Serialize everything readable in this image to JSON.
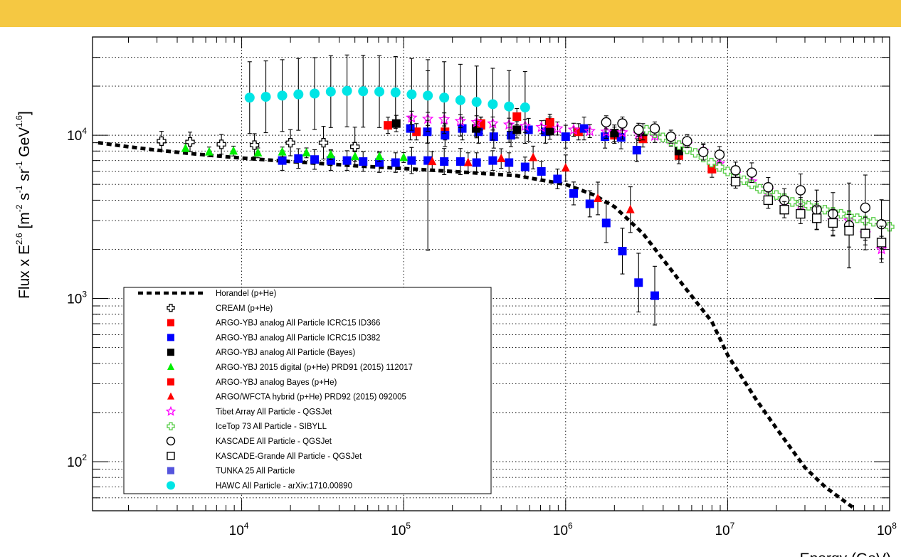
{
  "chart_data": {
    "type": "scatter",
    "xscale": "log",
    "yscale": "log",
    "xlim": [
      1200,
      100000000
    ],
    "ylim": [
      50,
      40000
    ],
    "grid": true,
    "legend_position": "bottom-left",
    "xlabel": "Energy (GeV)",
    "ylabel_parts": {
      "base": "Flux x E",
      "exp1": "2.6",
      "open": " [m",
      "exp2": "-2",
      "s": " s",
      "exp3": "-1",
      "sr": " sr",
      "exp4": "-1",
      "gev": " GeV",
      "exp5": "1.6",
      "close": "]"
    },
    "x_ticks": [
      {
        "value": 10000,
        "base": "10",
        "exp": "4"
      },
      {
        "value": 100000,
        "base": "10",
        "exp": "5"
      },
      {
        "value": 1000000,
        "base": "10",
        "exp": "6"
      },
      {
        "value": 10000000,
        "base": "10",
        "exp": "7"
      },
      {
        "value": 100000000,
        "base": "10",
        "exp": "8"
      }
    ],
    "y_ticks": [
      {
        "value": 100,
        "base": "10",
        "exp": "2"
      },
      {
        "value": 1000,
        "base": "10",
        "exp": "3"
      },
      {
        "value": 10000,
        "base": "10",
        "exp": "4"
      }
    ],
    "series": [
      {
        "name": "Horandel (p+He)",
        "marker": "line-dashed",
        "color": "#000000",
        "x": [
          1300,
          2000,
          3000,
          5000,
          10000,
          20000,
          50000,
          100000,
          200000,
          500000,
          1000000,
          1500000,
          2000000,
          3000000,
          5000000,
          8000000,
          10000000,
          15000000,
          20000000,
          30000000,
          40000000,
          60000000
        ],
        "y": [
          9000,
          8500,
          8100,
          7700,
          7250,
          6900,
          6500,
          6250,
          6000,
          5650,
          5000,
          4300,
          3650,
          2500,
          1300,
          720,
          450,
          240,
          160,
          92,
          70,
          52
        ]
      },
      {
        "name": "CREAM (p+He)",
        "marker": "cross-open",
        "color": "#000000",
        "x": [
          3200,
          4800,
          7500,
          12000,
          20000,
          32000,
          50000
        ],
        "y": [
          9200,
          9100,
          8800,
          8700,
          9000,
          9000,
          8500
        ],
        "err": [
          0.06,
          0.06,
          0.06,
          0.07,
          0.08,
          0.1,
          0.12
        ]
      },
      {
        "name": "ARGO-YBJ analog All Particle ICRC15 ID366",
        "marker": "square-filled",
        "color": "#ff0000",
        "x": [
          80000,
          120000,
          180000,
          300000,
          500000,
          800000,
          1200000,
          2000000,
          3000000,
          5000000,
          8000000
        ],
        "y": [
          11500,
          10500,
          10500,
          11500,
          13000,
          12000,
          10500,
          10000,
          9500,
          7500,
          6200
        ],
        "err": [
          0.05,
          0.05,
          0.05,
          0.05,
          0.05,
          0.05,
          0.05,
          0.05,
          0.05,
          0.05,
          0.05
        ]
      },
      {
        "name": "ARGO-YBJ analog All Particle ICRC15 ID382",
        "marker": "square-filled",
        "color": "#0000ff",
        "x": [
          17800,
          22400,
          28200,
          35500,
          44700,
          56200,
          70800,
          89100,
          112000,
          141000,
          178000,
          224000,
          282000,
          355000,
          447000,
          562000,
          708000,
          891000,
          1120000,
          1410000,
          1780000,
          2240000,
          2820000,
          3550000,
          110000,
          140000,
          180000,
          230000,
          290000,
          360000,
          460000,
          590000,
          750000,
          1000000,
          1300000,
          1750000,
          2200000,
          2750000
        ],
        "y": [
          7000,
          7200,
          7100,
          7000,
          7000,
          6900,
          6800,
          6800,
          7000,
          7000,
          6900,
          6900,
          6800,
          7000,
          6800,
          6400,
          6000,
          5400,
          4400,
          3800,
          2900,
          1950,
          1250,
          1040,
          11000,
          10500,
          10000,
          11000,
          10500,
          9800,
          10000,
          10800,
          10500,
          9800,
          11000,
          9800,
          9700,
          8100
        ],
        "err": [
          0.06,
          0.06,
          0.06,
          0.06,
          0.06,
          0.06,
          0.06,
          0.06,
          0.08,
          0.55,
          0.08,
          0.08,
          0.06,
          0.06,
          0.06,
          0.06,
          0.06,
          0.06,
          0.07,
          0.08,
          0.12,
          0.14,
          0.18,
          0.18,
          0.07,
          0.07,
          0.07,
          0.07,
          0.07,
          0.07,
          0.07,
          0.07,
          0.07,
          0.07,
          0.07,
          0.07,
          0.07,
          0.07
        ]
      },
      {
        "name": "ARGO-YBJ analog All Particle (Bayes)",
        "marker": "square-filled",
        "color": "#000000",
        "x": [
          90000,
          280000,
          500000,
          800000,
          2000000,
          3000000,
          5000000
        ],
        "y": [
          11800,
          11000,
          10800,
          10600,
          10300,
          10500,
          8000
        ],
        "err": [
          0.05,
          0.05,
          0.05,
          0.05,
          0.05,
          0.05,
          0.05
        ]
      },
      {
        "name": "ARGO-YBJ 2015 digital (p+He) PRD91 (2015) 112017",
        "marker": "triangle-filled",
        "color": "#00ee00",
        "x": [
          4500,
          6300,
          8900,
          12600,
          17800,
          25100,
          35500,
          50100,
          70800,
          100000
        ],
        "y": [
          8300,
          7900,
          8000,
          7800,
          7900,
          7800,
          7600,
          7400,
          7400,
          7300
        ],
        "err": [
          0.03,
          0.03,
          0.03,
          0.03,
          0.03,
          0.03,
          0.03,
          0.03,
          0.03,
          0.03
        ]
      },
      {
        "name": "ARGO-YBJ analog Bayes (p+He)",
        "marker": "square-filled",
        "color": "#ff0000",
        "x": [
          300000,
          800000
        ],
        "y": [
          11800,
          11800
        ],
        "err": [
          0.04,
          0.04
        ]
      },
      {
        "name": "ARGO/WFCTA hybrid (p+He) PRD92 (2015) 092005",
        "marker": "triangle-filled",
        "color": "#ff0000",
        "x": [
          150000,
          250000,
          400000,
          630000,
          1000000,
          1580000,
          2510000
        ],
        "y": [
          6900,
          6800,
          7200,
          7300,
          6300,
          4100,
          3500
        ],
        "err": [
          0.06,
          0.06,
          0.06,
          0.07,
          0.08,
          0.1,
          0.14
        ]
      },
      {
        "name": "Tibet Array All Particle - QGSJet",
        "marker": "star-open",
        "color": "#ff00ff",
        "x": [
          112000,
          141000,
          178000,
          224000,
          282000,
          355000,
          447000,
          562000,
          708000,
          891000,
          1120000,
          1410000,
          1780000,
          2240000,
          2820000,
          3550000,
          4470000,
          5620000,
          7080000,
          8910000,
          11200000,
          14100000,
          17800000,
          22400000,
          28200000,
          35500000,
          44700000,
          56200000,
          70800000,
          89100000
        ],
        "y": [
          12800,
          12600,
          12500,
          12200,
          12000,
          11800,
          11600,
          11400,
          11200,
          11000,
          10800,
          10600,
          10500,
          10400,
          10200,
          9900,
          9400,
          8800,
          8000,
          6700,
          5800,
          5200,
          4600,
          3900,
          3700,
          3500,
          3000,
          3000,
          2500,
          2000
        ],
        "err": [
          0.04,
          0.04,
          0.04,
          0.04,
          0.04,
          0.04,
          0.04,
          0.04,
          0.04,
          0.04,
          0.04,
          0.04,
          0.04,
          0.04,
          0.04,
          0.04,
          0.04,
          0.04,
          0.04,
          0.04,
          0.04,
          0.04,
          0.04,
          0.05,
          0.05,
          0.05,
          0.06,
          0.06,
          0.07,
          0.08
        ]
      },
      {
        "name": "IceTop 73 All Particle - SIBYLL",
        "marker": "cross-open",
        "color": "#55cc44",
        "x": [
          3160000,
          3550000,
          3980000,
          4470000,
          5010000,
          5620000,
          6310000,
          7080000,
          7940000,
          8910000,
          10000000,
          11200000,
          12600000,
          14100000,
          15800000,
          17800000,
          20000000,
          22400000,
          25100000,
          28200000,
          31600000,
          35500000,
          39800000,
          44700000,
          50100000,
          56200000,
          63100000,
          70800000,
          79400000,
          89100000,
          100000000
        ],
        "y": [
          10800,
          10300,
          9700,
          9200,
          8700,
          8200,
          7800,
          7300,
          6800,
          6400,
          6000,
          5600,
          5300,
          5000,
          4700,
          4500,
          4300,
          4100,
          3900,
          3800,
          3700,
          3600,
          3500,
          3400,
          3300,
          3200,
          3100,
          3000,
          2950,
          2850,
          2750
        ]
      },
      {
        "name": "KASCADE All Particle - QGSJet",
        "marker": "circle-open",
        "color": "#000000",
        "x": [
          1780000,
          2240000,
          2820000,
          3550000,
          4470000,
          5620000,
          7080000,
          8910000,
          11200000,
          14100000,
          17800000,
          22400000,
          28200000,
          35500000,
          44700000,
          56200000,
          70800000,
          89100000
        ],
        "y": [
          12000,
          11800,
          10800,
          11000,
          9800,
          9200,
          7900,
          7600,
          6100,
          5900,
          4800,
          4000,
          4600,
          3500,
          3300,
          2800,
          3600,
          2850
        ],
        "err": [
          0.04,
          0.04,
          0.04,
          0.04,
          0.04,
          0.04,
          0.05,
          0.05,
          0.05,
          0.06,
          0.06,
          0.07,
          0.1,
          0.12,
          0.13,
          0.26,
          0.2,
          0.15
        ]
      },
      {
        "name": "KASCADE-Grande All Particle - QGSJet",
        "marker": "square-open",
        "color": "#000000",
        "x": [
          11200000,
          17800000,
          22400000,
          28200000,
          35500000,
          44700000,
          56200000,
          70800000,
          89100000
        ],
        "y": [
          5200,
          4000,
          3500,
          3300,
          3100,
          2900,
          2600,
          2500,
          2200
        ],
        "err": [
          0.04,
          0.05,
          0.05,
          0.06,
          0.07,
          0.08,
          0.1,
          0.1,
          0.1
        ]
      },
      {
        "name": "TUNKA 25 All Particle",
        "marker": "square-filled",
        "color": "#5555dd",
        "x": [],
        "y": []
      },
      {
        "name": "HAWC All Particle - arXiv:1710.00890",
        "marker": "circle-filled",
        "color": "#00e5e5",
        "x": [
          11200,
          14100,
          17800,
          22400,
          28200,
          35500,
          44700,
          56200,
          70800,
          89100,
          112000,
          141000,
          178000,
          224000,
          282000,
          355000,
          447000,
          562000
        ],
        "y": [
          17000,
          17200,
          17500,
          17800,
          18000,
          18500,
          18700,
          18600,
          18500,
          18300,
          17800,
          17500,
          17000,
          16400,
          16000,
          15500,
          15000,
          14800
        ],
        "err": [
          0.22,
          0.22,
          0.22,
          0.22,
          0.22,
          0.22,
          0.22,
          0.22,
          0.22,
          0.22,
          0.22,
          0.22,
          0.22,
          0.22,
          0.22,
          0.22,
          0.22,
          0.22
        ]
      }
    ]
  }
}
